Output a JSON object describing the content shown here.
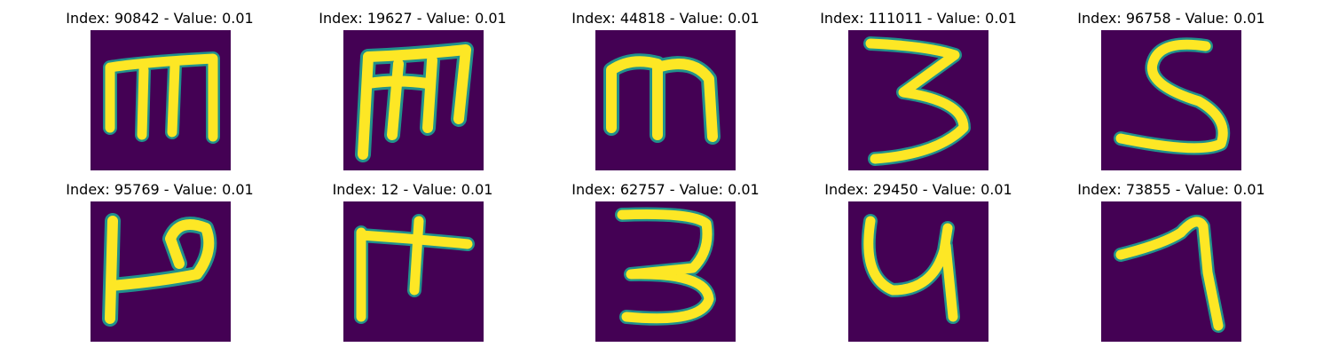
{
  "colors": {
    "background": "#440154",
    "edge": "#21918c",
    "stroke": "#fde725"
  },
  "panels": [
    {
      "title": "Index: 90842 - Value: 0.01",
      "glyph": "m"
    },
    {
      "title": "Index: 19627 - Value: 0.01",
      "glyph": "m"
    },
    {
      "title": "Index: 44818 - Value: 0.01",
      "glyph": "m"
    },
    {
      "title": "Index: 111011 - Value: 0.01",
      "glyph": "3"
    },
    {
      "title": "Index: 96758 - Value: 0.01",
      "glyph": "S"
    },
    {
      "title": "Index: 95769 - Value: 0.01",
      "glyph": "P"
    },
    {
      "title": "Index: 12 - Value: 0.01",
      "glyph": "F"
    },
    {
      "title": "Index: 62757 - Value: 0.01",
      "glyph": "3"
    },
    {
      "title": "Index: 29450 - Value: 0.01",
      "glyph": "y"
    },
    {
      "title": "Index: 73855 - Value: 0.01",
      "glyph": "1"
    }
  ]
}
